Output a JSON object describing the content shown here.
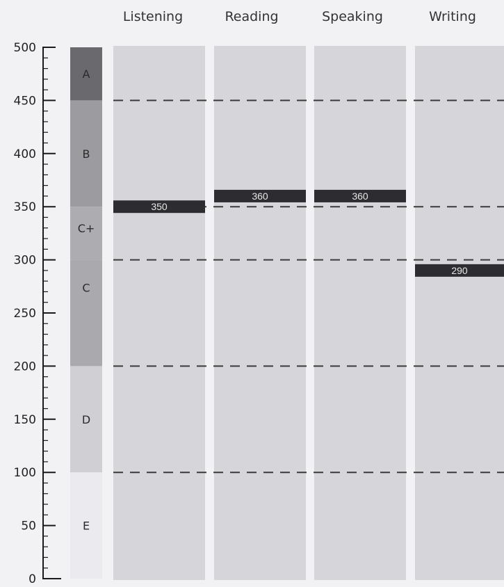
{
  "chart_data": {
    "type": "bar",
    "categories": [
      "Listening",
      "Reading",
      "Speaking",
      "Writing"
    ],
    "values": [
      350,
      360,
      360,
      290
    ],
    "value_labels": [
      "350",
      "360",
      "360",
      "290"
    ],
    "ylim": [
      0,
      500
    ],
    "yticks": [
      0,
      50,
      100,
      150,
      200,
      250,
      300,
      350,
      400,
      450,
      500
    ],
    "grade_bands": [
      {
        "label": "A",
        "from": 450,
        "to": 500,
        "color": "#6a6a6e"
      },
      {
        "label": "B",
        "from": 350,
        "to": 450,
        "color": "#9c9ba0"
      },
      {
        "label": "C+",
        "from": 300,
        "to": 350,
        "color": "#adacb1"
      },
      {
        "label": "C",
        "from": 200,
        "to": 300,
        "color": "#aaa9ae"
      },
      {
        "label": "D",
        "from": 100,
        "to": 200,
        "color": "#d0cfd4"
      },
      {
        "label": "E",
        "from": 0,
        "to": 100,
        "color": "#ebeaee"
      }
    ],
    "dashed_lines": [
      450,
      350,
      300,
      200,
      100
    ],
    "grid": false
  }
}
